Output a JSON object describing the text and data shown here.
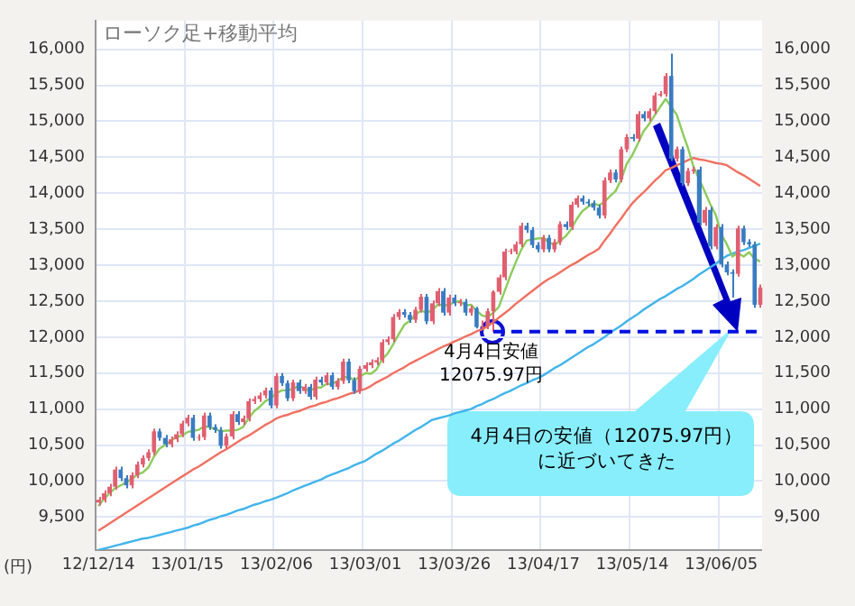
{
  "chart_data": {
    "type": "candlestick",
    "title": "ローソク足+移動平均",
    "ylabel": "(円)",
    "annotations": [
      "4月4日安値\n12075.97円",
      "4月4日の安値（12075.97円）に近づいてきた"
    ],
    "categories": [
      "12/12/14",
      null,
      null,
      null,
      null,
      null,
      null,
      null,
      null,
      null,
      null,
      null,
      null,
      null,
      null,
      null,
      "13/01/15",
      null,
      null,
      null,
      null,
      null,
      null,
      null,
      null,
      null,
      null,
      null,
      null,
      null,
      null,
      null,
      "13/02/06",
      null,
      null,
      null,
      null,
      null,
      null,
      null,
      null,
      null,
      null,
      null,
      null,
      null,
      null,
      null,
      "13/03/01",
      null,
      null,
      null,
      null,
      null,
      null,
      null,
      null,
      null,
      null,
      null,
      null,
      null,
      null,
      null,
      "13/03/26",
      null,
      null,
      null,
      null,
      null,
      null,
      null,
      null,
      null,
      null,
      null,
      null,
      null,
      null,
      null,
      "13/04/17",
      null,
      null,
      null,
      null,
      null,
      null,
      null,
      null,
      null,
      null,
      null,
      null,
      null,
      null,
      null,
      "13/05/14",
      null,
      null,
      null,
      null,
      null,
      null,
      null,
      null,
      null,
      null,
      null,
      null,
      null,
      null,
      null,
      "13/06/05",
      null,
      null,
      null,
      null,
      null,
      null,
      null
    ],
    "ohlc": [
      [
        9700,
        9780,
        9660,
        9740
      ],
      [
        9740,
        9870,
        9700,
        9830
      ],
      [
        9830,
        9960,
        9790,
        9920
      ],
      [
        9920,
        10200,
        9880,
        10160
      ],
      [
        10160,
        10200,
        10000,
        10040
      ],
      [
        10040,
        10080,
        9900,
        9940
      ],
      [
        9940,
        10120,
        9900,
        10080
      ],
      [
        10080,
        10270,
        10040,
        10230
      ],
      [
        10230,
        10360,
        10190,
        10320
      ],
      [
        10320,
        10440,
        10280,
        10400
      ],
      [
        10400,
        10730,
        10360,
        10690
      ],
      [
        10690,
        10730,
        10560,
        10600
      ],
      [
        10600,
        10640,
        10470,
        10510
      ],
      [
        10510,
        10620,
        10470,
        10580
      ],
      [
        10580,
        10690,
        10540,
        10650
      ],
      [
        10650,
        10840,
        10610,
        10800
      ],
      [
        10800,
        10920,
        10760,
        10880
      ],
      [
        10880,
        10920,
        10560,
        10600
      ],
      [
        10600,
        10650,
        10560,
        10610
      ],
      [
        10610,
        10950,
        10570,
        10910
      ],
      [
        10910,
        10950,
        10710,
        10750
      ],
      [
        10750,
        10790,
        10670,
        10710
      ],
      [
        10710,
        10750,
        10450,
        10490
      ],
      [
        10490,
        10660,
        10450,
        10620
      ],
      [
        10620,
        10970,
        10580,
        10930
      ],
      [
        10930,
        10970,
        10780,
        10820
      ],
      [
        10820,
        10910,
        10780,
        10870
      ],
      [
        10870,
        11150,
        10830,
        11110
      ],
      [
        11110,
        11180,
        11070,
        11140
      ],
      [
        11140,
        11230,
        11100,
        11190
      ],
      [
        11190,
        11300,
        11150,
        11260
      ],
      [
        11260,
        11300,
        11010,
        11050
      ],
      [
        11050,
        11500,
        11010,
        11460
      ],
      [
        11460,
        11500,
        11320,
        11360
      ],
      [
        11360,
        11400,
        11110,
        11150
      ],
      [
        11150,
        11410,
        11110,
        11370
      ],
      [
        11370,
        11410,
        11210,
        11250
      ],
      [
        11250,
        11350,
        11210,
        11310
      ],
      [
        11310,
        11350,
        11130,
        11170
      ],
      [
        11170,
        11450,
        11130,
        11410
      ],
      [
        11410,
        11450,
        11330,
        11370
      ],
      [
        11370,
        11510,
        11330,
        11470
      ],
      [
        11470,
        11510,
        11270,
        11310
      ],
      [
        11310,
        11430,
        11270,
        11390
      ],
      [
        11390,
        11700,
        11350,
        11660
      ],
      [
        11660,
        11700,
        11360,
        11400
      ],
      [
        11400,
        11440,
        11210,
        11250
      ],
      [
        11250,
        11600,
        11210,
        11560
      ],
      [
        11560,
        11650,
        11520,
        11610
      ],
      [
        11610,
        11690,
        11570,
        11650
      ],
      [
        11650,
        11720,
        11610,
        11680
      ],
      [
        11680,
        11970,
        11640,
        11930
      ],
      [
        11930,
        12010,
        11890,
        11970
      ],
      [
        11970,
        12320,
        11930,
        12280
      ],
      [
        12280,
        12390,
        12240,
        12350
      ],
      [
        12350,
        12390,
        12270,
        12310
      ],
      [
        12310,
        12350,
        12200,
        12240
      ],
      [
        12240,
        12420,
        12200,
        12380
      ],
      [
        12380,
        12600,
        12340,
        12560
      ],
      [
        12560,
        12600,
        12180,
        12220
      ],
      [
        12220,
        12510,
        12180,
        12470
      ],
      [
        12470,
        12680,
        12430,
        12640
      ],
      [
        12640,
        12680,
        12300,
        12340
      ],
      [
        12340,
        12590,
        12300,
        12550
      ],
      [
        12550,
        12590,
        12430,
        12470
      ],
      [
        12470,
        12530,
        12430,
        12490
      ],
      [
        12490,
        12530,
        12300,
        12340
      ],
      [
        12340,
        12440,
        12300,
        12400
      ],
      [
        12400,
        12420,
        12120,
        12140
      ],
      [
        12140,
        12230,
        12100,
        12150
      ],
      [
        12150,
        12400,
        12110,
        12360
      ],
      [
        12360,
        12650,
        12075.97,
        12630
      ],
      [
        12630,
        12870,
        12590,
        12830
      ],
      [
        12830,
        13230,
        12790,
        13190
      ],
      [
        13190,
        13230,
        13150,
        13200
      ],
      [
        13190,
        13330,
        13150,
        13290
      ],
      [
        13290,
        13590,
        13250,
        13550
      ],
      [
        13550,
        13590,
        13450,
        13490
      ],
      [
        13490,
        13530,
        13240,
        13280
      ],
      [
        13280,
        13320,
        13180,
        13220
      ],
      [
        13220,
        13420,
        13180,
        13380
      ],
      [
        13380,
        13420,
        13180,
        13220
      ],
      [
        13220,
        13360,
        13180,
        13320
      ],
      [
        13320,
        13610,
        13280,
        13570
      ],
      [
        13570,
        13610,
        13490,
        13530
      ],
      [
        13530,
        13880,
        13490,
        13840
      ],
      [
        13840,
        13970,
        13800,
        13930
      ],
      [
        13930,
        13970,
        13840,
        13880
      ],
      [
        13880,
        13920,
        13820,
        13860
      ],
      [
        13860,
        13900,
        13760,
        13800
      ],
      [
        13800,
        13840,
        13650,
        13690
      ],
      [
        13690,
        14220,
        13650,
        14180
      ],
      [
        14180,
        14330,
        14140,
        14290
      ],
      [
        14290,
        14330,
        14150,
        14190
      ],
      [
        14190,
        14650,
        14150,
        14610
      ],
      [
        14610,
        14820,
        14570,
        14780
      ],
      [
        14780,
        14820,
        14720,
        14760
      ],
      [
        14760,
        15140,
        14720,
        15100
      ],
      [
        15100,
        15140,
        15000,
        15040
      ],
      [
        15040,
        15180,
        15000,
        15140
      ],
      [
        15140,
        15400,
        15100,
        15360
      ],
      [
        15360,
        15420,
        15340,
        15380
      ],
      [
        15380,
        15670,
        15340,
        15630
      ],
      [
        15630,
        15940,
        14450,
        14480
      ],
      [
        14480,
        14650,
        14440,
        14610
      ],
      [
        14610,
        14650,
        14100,
        14140
      ],
      [
        14140,
        14350,
        14100,
        14310
      ],
      [
        14310,
        14370,
        14270,
        14330
      ],
      [
        14330,
        14370,
        13550,
        13590
      ],
      [
        13590,
        13810,
        13550,
        13770
      ],
      [
        13770,
        13810,
        13220,
        13260
      ],
      [
        13260,
        13570,
        13220,
        13530
      ],
      [
        13530,
        13570,
        12970,
        13010
      ],
      [
        13010,
        13050,
        12860,
        12900
      ],
      [
        12900,
        12940,
        12550,
        12880
      ],
      [
        12880,
        13550,
        12840,
        13510
      ],
      [
        13510,
        13550,
        13280,
        13320
      ],
      [
        13320,
        13360,
        13250,
        13290
      ],
      [
        13290,
        13330,
        12410,
        12450
      ],
      [
        12450,
        12730,
        12410,
        12690
      ]
    ],
    "colors": [
      "#e06070",
      "#e06070",
      "#e06070",
      "#e06070",
      "#3a7cc2",
      "#3a7cc2",
      "#e06070",
      "#e06070",
      "#e06070",
      "#e06070",
      "#e06070",
      "#3a7cc2",
      "#3a7cc2",
      "#e06070",
      "#e06070",
      "#e06070",
      "#e06070",
      "#3a7cc2",
      "#e06070",
      "#e06070",
      "#3a7cc2",
      "#3a7cc2",
      "#3a7cc2",
      "#e06070",
      "#e06070",
      "#3a7cc2",
      "#e06070",
      "#e06070",
      "#e06070",
      "#e06070",
      "#e06070",
      "#3a7cc2",
      "#e06070",
      "#3a7cc2",
      "#3a7cc2",
      "#e06070",
      "#3a7cc2",
      "#e06070",
      "#3a7cc2",
      "#e06070",
      "#3a7cc2",
      "#e06070",
      "#3a7cc2",
      "#e06070",
      "#e06070",
      "#3a7cc2",
      "#3a7cc2",
      "#e06070",
      "#e06070",
      "#e06070",
      "#e06070",
      "#e06070",
      "#e06070",
      "#e06070",
      "#e06070",
      "#3a7cc2",
      "#3a7cc2",
      "#e06070",
      "#e06070",
      "#3a7cc2",
      "#e06070",
      "#e06070",
      "#3a7cc2",
      "#e06070",
      "#3a7cc2",
      "#e06070",
      "#3a7cc2",
      "#e06070",
      "#3a7cc2",
      "#e06070",
      "#e06070",
      "#e06070",
      "#e06070",
      "#e06070",
      "#e06070",
      "#e06070",
      "#e06070",
      "#3a7cc2",
      "#3a7cc2",
      "#3a7cc2",
      "#e06070",
      "#3a7cc2",
      "#e06070",
      "#e06070",
      "#3a7cc2",
      "#e06070",
      "#e06070",
      "#3a7cc2",
      "#3a7cc2",
      "#3a7cc2",
      "#3a7cc2",
      "#e06070",
      "#e06070",
      "#3a7cc2",
      "#e06070",
      "#e06070",
      "#3a7cc2",
      "#e06070",
      "#3a7cc2",
      "#e06070",
      "#e06070",
      "#e06070",
      "#e06070",
      "#3a7cc2",
      "#e06070",
      "#3a7cc2",
      "#e06070",
      "#e06070",
      "#3a7cc2",
      "#e06070",
      "#3a7cc2",
      "#e06070",
      "#3a7cc2",
      "#3a7cc2",
      "#3a7cc2",
      "#e06070",
      "#3a7cc2",
      "#3a7cc2",
      "#3a7cc2",
      "#e06070"
    ],
    "series": [
      {
        "type": "line",
        "color": "#8ccc5c",
        "values": [
          9650,
          9750,
          9830,
          9900,
          9940,
          9980,
          10030,
          10090,
          10120,
          10190,
          10340,
          10450,
          10500,
          10560,
          10610,
          10630,
          10680,
          10700,
          10710,
          10760,
          10750,
          10720,
          10690,
          10700,
          10700,
          10710,
          10750,
          10870,
          10970,
          11030,
          11110,
          11150,
          11220,
          11260,
          11260,
          11280,
          11320,
          11290,
          11250,
          11300,
          11300,
          11350,
          11350,
          11390,
          11440,
          11450,
          11400,
          11450,
          11500,
          11490,
          11550,
          11690,
          11770,
          11900,
          12040,
          12170,
          12230,
          12310,
          12370,
          12340,
          12370,
          12450,
          12450,
          12440,
          12490,
          12500,
          12440,
          12450,
          12370,
          12300,
          12280,
          12340,
          12420,
          12630,
          12840,
          13030,
          13210,
          13340,
          13360,
          13370,
          13380,
          13320,
          13280,
          13340,
          13400,
          13500,
          13640,
          13750,
          13810,
          13860,
          13830,
          13880,
          13960,
          14030,
          14190,
          14410,
          14530,
          14690,
          14860,
          14960,
          15080,
          15200,
          15310,
          15200,
          15090,
          14850,
          14630,
          14370,
          14200,
          14030,
          13850,
          13700,
          13430,
          13290,
          13120,
          13170,
          13120,
          13180,
          13090,
          13050
        ]
      },
      {
        "type": "line",
        "color": "#f07060",
        "values": [
          9310,
          9360,
          9410,
          9460,
          9510,
          9560,
          9610,
          9660,
          9710,
          9760,
          9810,
          9860,
          9910,
          9960,
          10010,
          10060,
          10110,
          10160,
          10200,
          10250,
          10300,
          10350,
          10400,
          10440,
          10490,
          10540,
          10590,
          10630,
          10680,
          10730,
          10780,
          10820,
          10870,
          10900,
          10920,
          10950,
          10970,
          11000,
          11030,
          11050,
          11080,
          11100,
          11130,
          11150,
          11180,
          11210,
          11230,
          11260,
          11280,
          11320,
          11370,
          11410,
          11450,
          11500,
          11540,
          11580,
          11630,
          11670,
          11710,
          11750,
          11790,
          11830,
          11870,
          11900,
          11940,
          11970,
          12010,
          12040,
          12080,
          12110,
          12150,
          12210,
          12270,
          12330,
          12390,
          12460,
          12520,
          12580,
          12640,
          12700,
          12760,
          12810,
          12850,
          12900,
          12950,
          13000,
          13040,
          13090,
          13140,
          13180,
          13230,
          13340,
          13440,
          13550,
          13650,
          13760,
          13860,
          13940,
          14010,
          14090,
          14170,
          14240,
          14320,
          14350,
          14390,
          14420,
          14460,
          14490,
          14470,
          14460,
          14440,
          14420,
          14410,
          14390,
          14340,
          14290,
          14250,
          14200,
          14150,
          14100
        ]
      },
      {
        "type": "line",
        "color": "#40b4ec",
        "values": [
          9040,
          9060,
          9080,
          9100,
          9120,
          9140,
          9160,
          9180,
          9200,
          9210,
          9230,
          9250,
          9270,
          9290,
          9310,
          9330,
          9350,
          9380,
          9400,
          9430,
          9460,
          9480,
          9510,
          9530,
          9560,
          9590,
          9610,
          9640,
          9670,
          9690,
          9720,
          9740,
          9770,
          9800,
          9830,
          9870,
          9900,
          9930,
          9960,
          9990,
          10020,
          10060,
          10090,
          10120,
          10150,
          10180,
          10220,
          10250,
          10280,
          10330,
          10380,
          10420,
          10470,
          10520,
          10560,
          10610,
          10660,
          10710,
          10750,
          10800,
          10850,
          10870,
          10890,
          10910,
          10940,
          10960,
          10980,
          11000,
          11040,
          11070,
          11110,
          11140,
          11180,
          11220,
          11250,
          11290,
          11330,
          11360,
          11400,
          11430,
          11470,
          11520,
          11570,
          11610,
          11660,
          11710,
          11760,
          11810,
          11860,
          11900,
          11950,
          12000,
          12060,
          12110,
          12160,
          12220,
          12270,
          12320,
          12380,
          12430,
          12480,
          12530,
          12570,
          12620,
          12670,
          12710,
          12760,
          12810,
          12870,
          12920,
          12970,
          13020,
          13080,
          13130,
          13160,
          13190,
          13210,
          13240,
          13270,
          13300
        ]
      }
    ],
    "ylim": [
      9040,
      16400
    ],
    "yticks": [
      {
        "value": 9500,
        "label": "9,500"
      },
      {
        "value": 10000,
        "label": "10,000"
      },
      {
        "value": 10500,
        "label": "10,500"
      },
      {
        "value": 11000,
        "label": "11,000"
      },
      {
        "value": 11500,
        "label": "11,500"
      },
      {
        "value": 12000,
        "label": "12,000"
      },
      {
        "value": 12500,
        "label": "12,500"
      },
      {
        "value": 13000,
        "label": "13,000"
      },
      {
        "value": 13500,
        "label": "13,500"
      },
      {
        "value": 14000,
        "label": "14,000"
      },
      {
        "value": 14500,
        "label": "14,500"
      },
      {
        "value": 15000,
        "label": "15,000"
      },
      {
        "value": 15500,
        "label": "15,500"
      },
      {
        "value": 16000,
        "label": "16,000"
      }
    ],
    "y2lim": [
      9040,
      16400
    ],
    "y2ticks": [
      {
        "value": 9500,
        "label": "9,500"
      },
      {
        "value": 10000,
        "label": "10,000"
      },
      {
        "value": 10500,
        "label": "10,500"
      },
      {
        "value": 11000,
        "label": "11,000"
      },
      {
        "value": 11500,
        "label": "11,500"
      },
      {
        "value": 12000,
        "label": "12,000"
      },
      {
        "value": 12500,
        "label": "12,500"
      },
      {
        "value": 13000,
        "label": "13,000"
      },
      {
        "value": 13500,
        "label": "13,500"
      },
      {
        "value": 14000,
        "label": "14,000"
      },
      {
        "value": 14500,
        "label": "14,500"
      },
      {
        "value": 15000,
        "label": "15,000"
      },
      {
        "value": 15500,
        "label": "15,500"
      },
      {
        "value": 16000,
        "label": "16,000"
      }
    ],
    "ref_lines": [
      {
        "axis": "y",
        "value": 12075.97,
        "color": "#0010e0",
        "line_style": "dashed"
      }
    ],
    "grid": true,
    "legend": false
  }
}
